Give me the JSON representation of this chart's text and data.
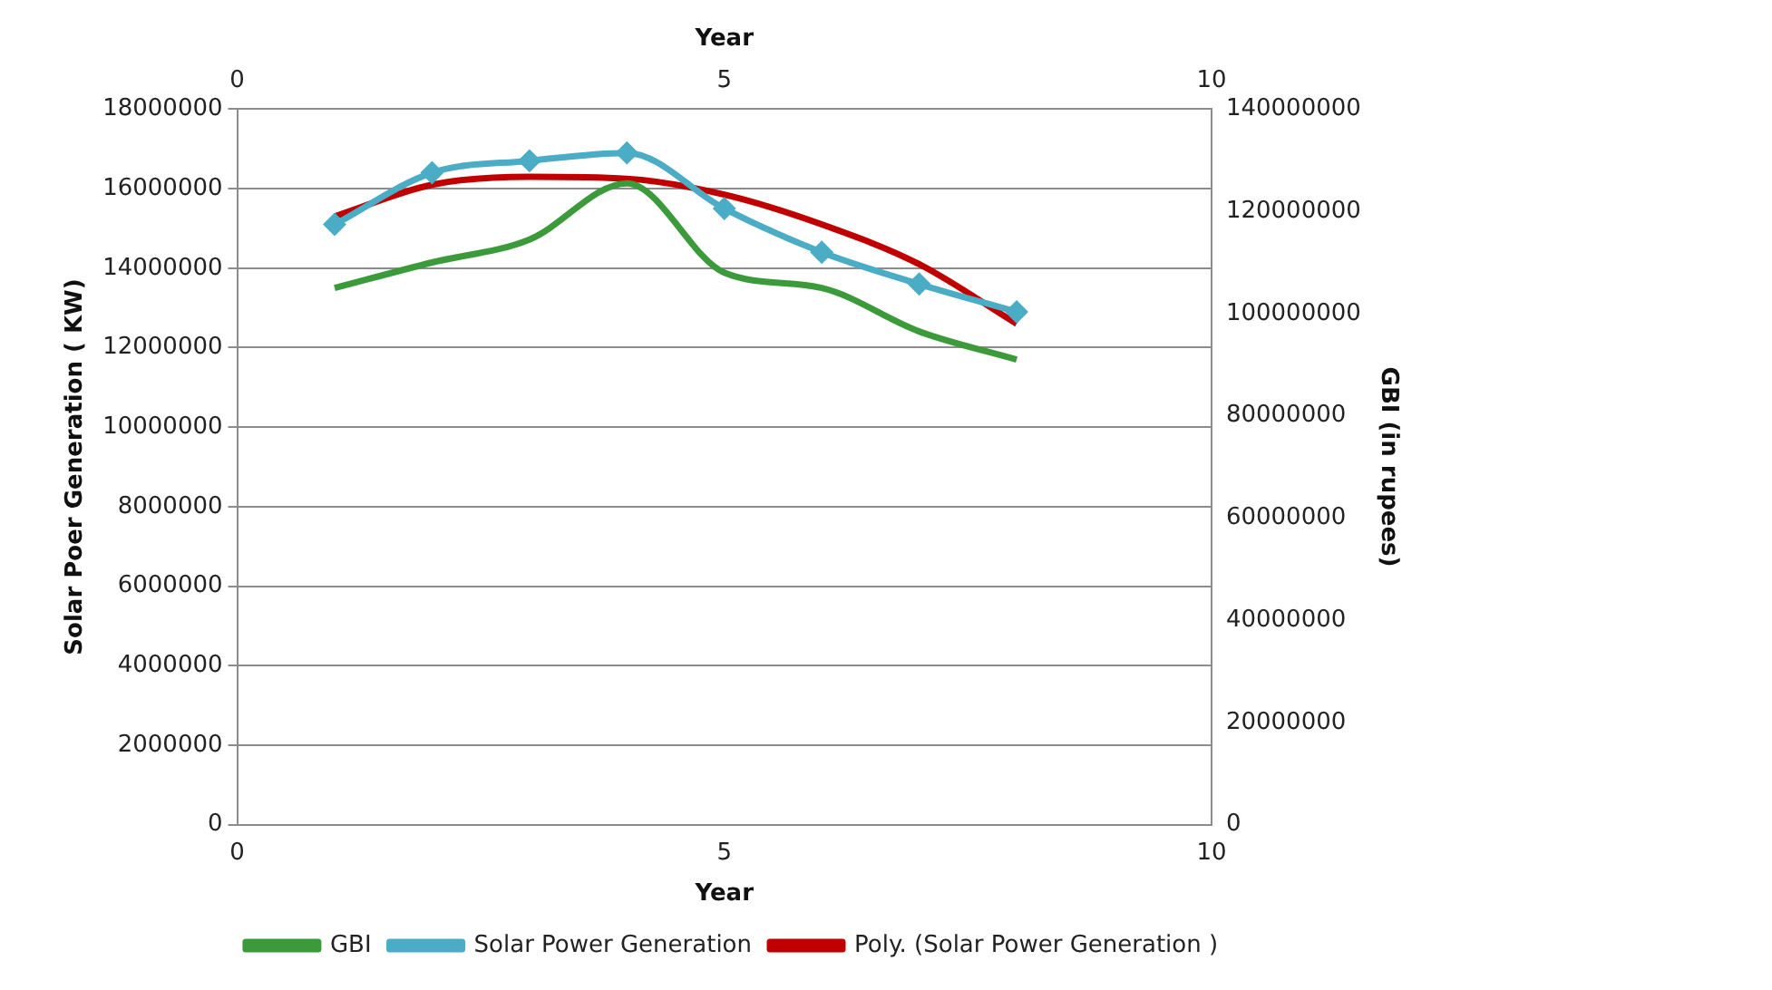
{
  "chart_data": {
    "type": "line",
    "xlabel": "Year",
    "x2label": "Year",
    "ylabel": "Solar Poer Generation ( KW)",
    "y2label": "GBI (in rupees)",
    "x": [
      1,
      2,
      3,
      4,
      5,
      6,
      7,
      8
    ],
    "series": [
      {
        "name": "GBI",
        "color": "#3b9b3b",
        "axis": "y2",
        "marker": "none",
        "values": [
          105000000,
          110000000,
          114500000,
          125500000,
          108000000,
          105000000,
          96500000,
          91000000
        ]
      },
      {
        "name": "Solar Power Generation",
        "color": "#4bacc6",
        "marker": "diamond",
        "values": [
          15100000,
          16400000,
          16700000,
          16900000,
          15500000,
          14400000,
          13600000,
          12900000
        ]
      },
      {
        "name": "Poly. (Solar Power Generation )",
        "color": "#c00000",
        "marker": "none",
        "values": [
          15300000,
          16100000,
          16300000,
          16250000,
          15850000,
          15100000,
          14100000,
          12600000
        ]
      }
    ],
    "xlim": [
      0,
      10
    ],
    "xticks": [
      0,
      5,
      10
    ],
    "x2lim": [
      0,
      10
    ],
    "x2ticks": [
      0,
      5,
      10
    ],
    "ylim": [
      0,
      18000000
    ],
    "yticks": [
      0,
      2000000,
      4000000,
      6000000,
      8000000,
      10000000,
      12000000,
      14000000,
      16000000,
      18000000
    ],
    "y2lim": [
      0,
      140000000
    ],
    "y2ticks": [
      0,
      20000000,
      40000000,
      60000000,
      80000000,
      100000000,
      120000000,
      140000000
    ],
    "grid": "y",
    "legend": "bottom"
  }
}
